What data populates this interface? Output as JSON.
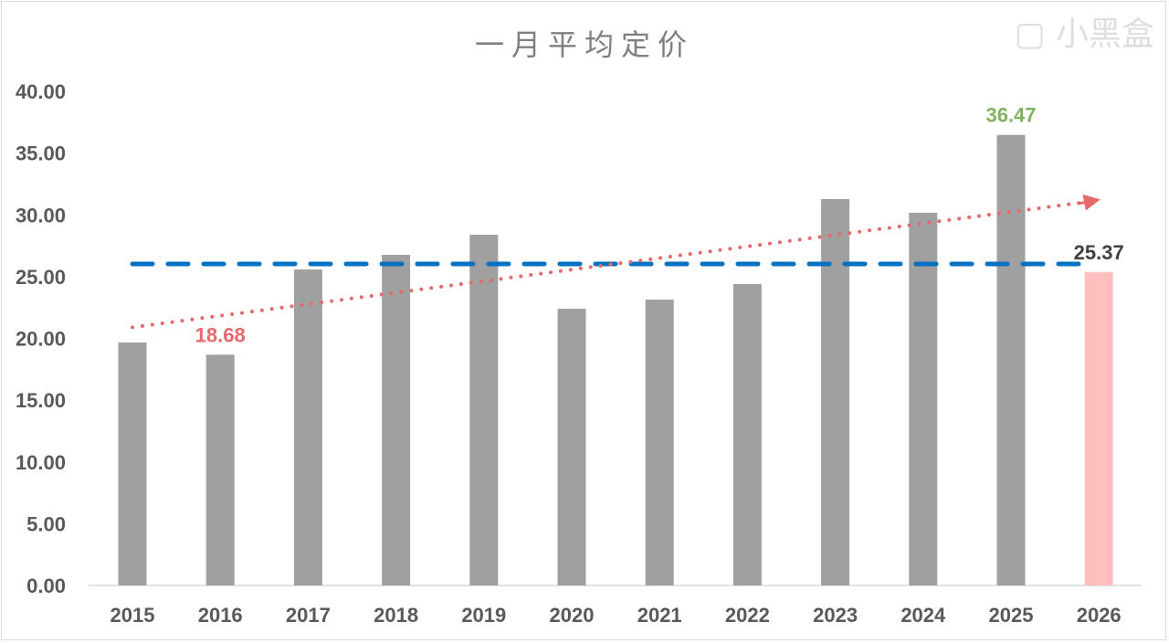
{
  "chart_data": {
    "type": "bar",
    "title": "一月平均定价",
    "xlabel": "",
    "ylabel": "",
    "ylim": [
      0,
      40
    ],
    "yticks": [
      "0.00",
      "5.00",
      "10.00",
      "15.00",
      "20.00",
      "25.00",
      "30.00",
      "35.00",
      "40.00"
    ],
    "categories": [
      "2015",
      "2016",
      "2017",
      "2018",
      "2019",
      "2020",
      "2021",
      "2022",
      "2023",
      "2024",
      "2025",
      "2026"
    ],
    "values": [
      19.67,
      18.68,
      25.58,
      26.77,
      28.39,
      22.4,
      23.14,
      24.4,
      31.28,
      30.17,
      36.47,
      25.37
    ],
    "bar_colors": [
      "#a0a0a0",
      "#a0a0a0",
      "#a0a0a0",
      "#a0a0a0",
      "#a0a0a0",
      "#a0a0a0",
      "#a0a0a0",
      "#a0a0a0",
      "#a0a0a0",
      "#a0a0a0",
      "#a0a0a0",
      "#ffbfbf"
    ],
    "data_labels": [
      {
        "index": 1,
        "text": "18.68",
        "color": "#e8676b"
      },
      {
        "index": 10,
        "text": "36.47",
        "color": "#7fb35f"
      },
      {
        "index": 11,
        "text": "25.37",
        "color": "#404040"
      }
    ],
    "average_line": {
      "value": 26.03,
      "color": "#0070c0",
      "style": "dashed"
    },
    "trend_line": {
      "start": 20.9,
      "end": 31.05,
      "color": "#e8676b",
      "style": "dotted",
      "arrow": true
    },
    "grid": false,
    "legend": "none"
  },
  "watermark": "小黑盒"
}
